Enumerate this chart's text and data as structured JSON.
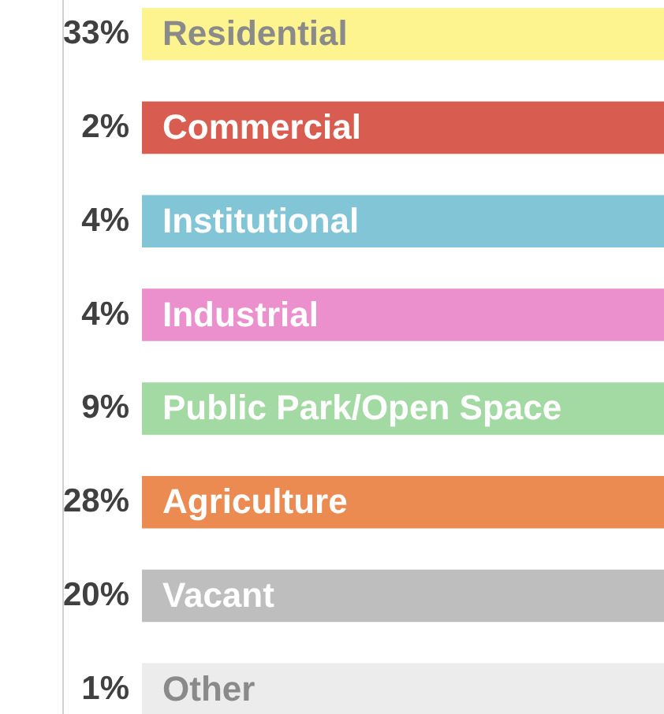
{
  "chart_data": {
    "type": "other",
    "categories": [
      "Residential",
      "Commercial",
      "Institutional",
      "Industrial",
      "Public Park/Open Space",
      "Agriculture",
      "Vacant",
      "Other"
    ],
    "values": [
      33,
      2,
      4,
      4,
      9,
      28,
      20,
      1
    ],
    "value_labels": [
      "33%",
      "2%",
      "4%",
      "4%",
      "9%",
      "28%",
      "20%",
      "1%"
    ],
    "colors": [
      "#fdf38f",
      "#d95c50",
      "#82c5d6",
      "#eb90cd",
      "#a3d9a3",
      "#eb8b52",
      "#bebebe",
      "#ececec"
    ]
  }
}
